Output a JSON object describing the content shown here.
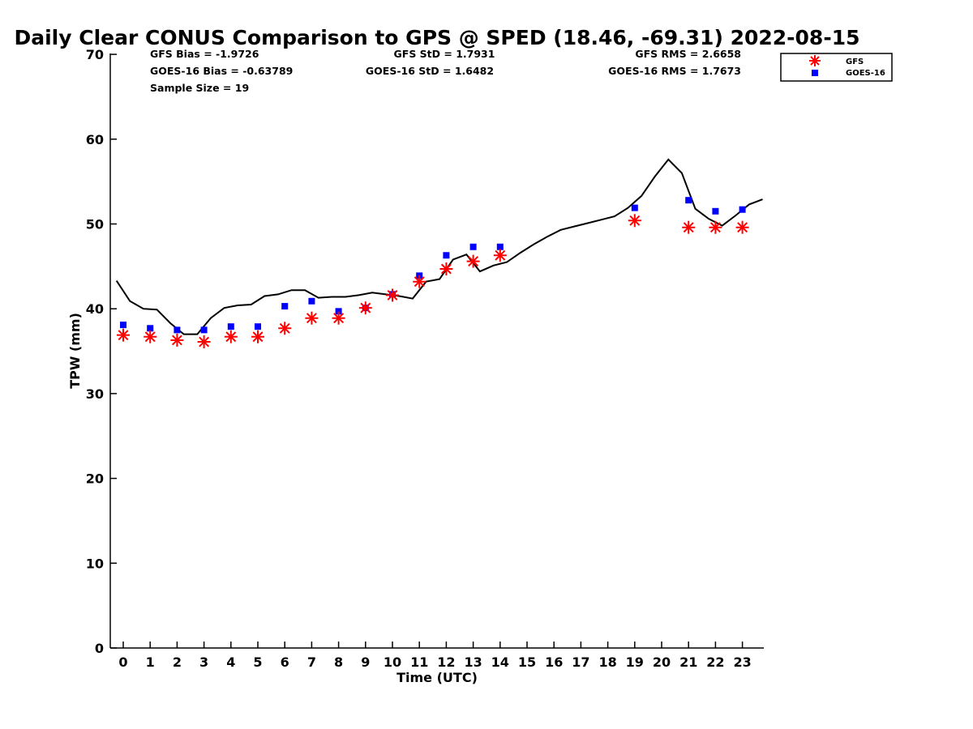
{
  "chart_data": {
    "type": "scatter",
    "title": "Daily Clear CONUS Comparison to GPS @ SPED (18.46, -69.31) 2022-08-15",
    "xlabel": "Time (UTC)",
    "ylabel": "TPW (mm)",
    "xlim": [
      -0.5,
      23.75
    ],
    "ylim": [
      0,
      70
    ],
    "x_ticks": [
      "0",
      "1",
      "2",
      "3",
      "4",
      "5",
      "6",
      "7",
      "8",
      "9",
      "10",
      "11",
      "12",
      "13",
      "14",
      "15",
      "16",
      "17",
      "18",
      "19",
      "20",
      "21",
      "22",
      "23"
    ],
    "y_ticks": [
      "0",
      "10",
      "20",
      "30",
      "40",
      "50",
      "60",
      "70"
    ],
    "grid": false,
    "legend_position": "top-right",
    "stats": {
      "gfs_bias": "GFS Bias = -1.9726",
      "goes_bias": "GOES-16 Bias = -0.63789",
      "sample_size": "Sample Size = 19",
      "gfs_std": "GFS StD = 1.7931",
      "goes_std": "GOES-16 StD = 1.6482",
      "gfs_rms": "GFS RMS = 2.6658",
      "goes_rms": "GOES-16 RMS = 1.7673"
    },
    "series": [
      {
        "name": "GFS",
        "marker": "asterisk",
        "color": "#ff0000",
        "points": [
          [
            0,
            36.9
          ],
          [
            1,
            36.7
          ],
          [
            2,
            36.3
          ],
          [
            3,
            36.1
          ],
          [
            4,
            36.7
          ],
          [
            5,
            36.7
          ],
          [
            6,
            37.7
          ],
          [
            7,
            38.9
          ],
          [
            8,
            38.9
          ],
          [
            9,
            40.1
          ],
          [
            10,
            41.6
          ],
          [
            11,
            43.2
          ],
          [
            12,
            44.7
          ],
          [
            13,
            45.6
          ],
          [
            14,
            46.3
          ],
          [
            19,
            50.4
          ],
          [
            21,
            49.6
          ],
          [
            22,
            49.6
          ],
          [
            23,
            49.6
          ]
        ]
      },
      {
        "name": "GOES-16",
        "marker": "square",
        "color": "#0000ff",
        "points": [
          [
            0,
            38.1
          ],
          [
            1,
            37.7
          ],
          [
            2,
            37.5
          ],
          [
            3,
            37.5
          ],
          [
            4,
            37.9
          ],
          [
            5,
            37.9
          ],
          [
            6,
            40.3
          ],
          [
            7,
            40.9
          ],
          [
            8,
            39.7
          ],
          [
            9,
            40.1
          ],
          [
            10,
            41.7
          ],
          [
            11,
            43.9
          ],
          [
            12,
            46.3
          ],
          [
            13,
            47.3
          ],
          [
            14,
            47.3
          ],
          [
            19,
            51.9
          ],
          [
            21,
            52.8
          ],
          [
            22,
            51.5
          ],
          [
            23,
            51.7
          ]
        ]
      },
      {
        "name": "GPS",
        "marker": "line",
        "color": "#000000",
        "points": [
          [
            -0.25,
            43.3
          ],
          [
            0.25,
            40.9
          ],
          [
            0.75,
            40.0
          ],
          [
            1.25,
            39.9
          ],
          [
            1.75,
            38.3
          ],
          [
            2.25,
            37.0
          ],
          [
            2.75,
            37.0
          ],
          [
            3.25,
            38.9
          ],
          [
            3.75,
            40.1
          ],
          [
            4.25,
            40.4
          ],
          [
            4.75,
            40.5
          ],
          [
            5.25,
            41.5
          ],
          [
            5.75,
            41.7
          ],
          [
            6.25,
            42.2
          ],
          [
            6.75,
            42.2
          ],
          [
            7.25,
            41.3
          ],
          [
            7.75,
            41.4
          ],
          [
            8.25,
            41.4
          ],
          [
            8.75,
            41.6
          ],
          [
            9.25,
            41.9
          ],
          [
            9.75,
            41.7
          ],
          [
            10.25,
            41.5
          ],
          [
            10.75,
            41.2
          ],
          [
            11.25,
            43.2
          ],
          [
            11.75,
            43.5
          ],
          [
            12.25,
            45.8
          ],
          [
            12.75,
            46.4
          ],
          [
            13.25,
            44.4
          ],
          [
            13.75,
            45.1
          ],
          [
            14.25,
            45.5
          ],
          [
            14.75,
            46.6
          ],
          [
            15.25,
            47.6
          ],
          [
            15.75,
            48.5
          ],
          [
            16.25,
            49.3
          ],
          [
            16.75,
            49.7
          ],
          [
            17.25,
            50.1
          ],
          [
            17.75,
            50.5
          ],
          [
            18.25,
            50.9
          ],
          [
            18.75,
            51.9
          ],
          [
            19.25,
            53.3
          ],
          [
            19.75,
            55.6
          ],
          [
            20.25,
            57.6
          ],
          [
            20.75,
            56.0
          ],
          [
            21.25,
            51.8
          ],
          [
            21.75,
            50.6
          ],
          [
            22.25,
            49.8
          ],
          [
            22.75,
            51.0
          ],
          [
            23.25,
            52.3
          ],
          [
            23.75,
            52.9
          ]
        ]
      }
    ]
  }
}
